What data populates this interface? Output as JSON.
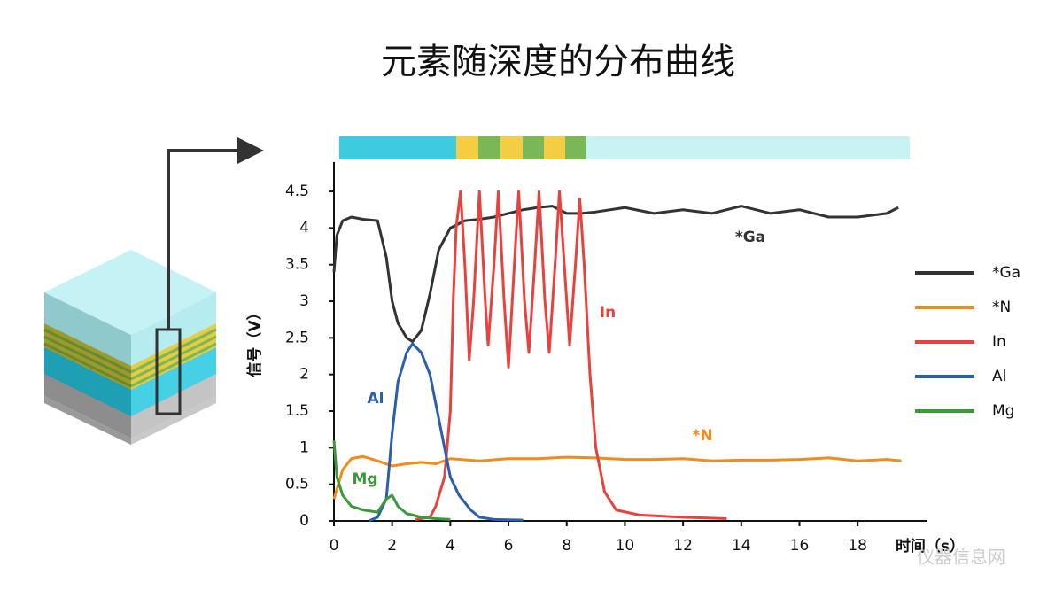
{
  "chart_data": {
    "type": "line",
    "title": "元素随深度的分布曲线",
    "x_label": "时间（s）",
    "y_label": "信号（V）",
    "xlim": [
      0,
      20.4
    ],
    "ylim": [
      0,
      4.9
    ],
    "xticks": [
      0,
      2,
      4,
      6,
      8,
      10,
      12,
      14,
      16,
      18
    ],
    "yticks": [
      0,
      0.5,
      1,
      1.5,
      2,
      2.5,
      3,
      3.5,
      4,
      4.5
    ],
    "legend": "right",
    "annotations": [
      "*Ga",
      "In",
      "Al",
      "*N",
      "Mg"
    ],
    "watermark": "仪器信息网",
    "series": [
      {
        "name": "*Ga",
        "color": "#333333",
        "x": [
          0,
          0.1,
          0.3,
          0.6,
          1,
          1.5,
          1.8,
          2,
          2.2,
          2.5,
          2.7,
          3,
          3.3,
          3.6,
          4,
          4.5,
          5,
          5.5,
          6,
          6.5,
          7,
          7.5,
          8,
          8.5,
          9,
          10,
          11,
          12,
          13,
          14,
          15,
          16,
          17,
          18,
          19,
          19.4
        ],
        "values": [
          3.4,
          3.9,
          4.1,
          4.15,
          4.12,
          4.1,
          3.6,
          3.0,
          2.7,
          2.5,
          2.45,
          2.6,
          3.1,
          3.7,
          4.0,
          4.1,
          4.12,
          4.15,
          4.2,
          4.25,
          4.28,
          4.3,
          4.2,
          4.2,
          4.22,
          4.28,
          4.2,
          4.25,
          4.2,
          4.3,
          4.2,
          4.25,
          4.15,
          4.15,
          4.2,
          4.28
        ]
      },
      {
        "name": "*N",
        "color": "#f08c1c",
        "x": [
          0,
          0.3,
          0.6,
          1,
          1.5,
          2,
          2.5,
          3,
          3.5,
          4,
          5,
          6,
          7,
          8,
          9,
          10,
          11,
          12,
          13,
          14,
          15,
          16,
          17,
          18,
          19,
          19.5
        ],
        "values": [
          0.3,
          0.7,
          0.85,
          0.88,
          0.82,
          0.75,
          0.78,
          0.8,
          0.78,
          0.85,
          0.82,
          0.85,
          0.85,
          0.87,
          0.86,
          0.84,
          0.84,
          0.85,
          0.82,
          0.83,
          0.83,
          0.84,
          0.86,
          0.82,
          0.84,
          0.82
        ]
      },
      {
        "name": "In",
        "color": "#e8413e",
        "x": [
          2.8,
          3.3,
          3.5,
          3.8,
          4.0,
          4.1,
          4.2,
          4.35,
          4.5,
          4.65,
          4.8,
          5.0,
          5.2,
          5.3,
          5.5,
          5.65,
          5.85,
          6.0,
          6.2,
          6.35,
          6.55,
          6.7,
          6.9,
          7.05,
          7.25,
          7.4,
          7.6,
          7.75,
          8.0,
          8.1,
          8.3,
          8.45,
          8.6,
          8.8,
          9.0,
          9.3,
          9.7,
          10.5,
          12,
          13.5
        ],
        "values": [
          0.02,
          0.05,
          0.2,
          0.6,
          1.5,
          3.0,
          4.0,
          4.5,
          3.5,
          2.2,
          3.0,
          4.5,
          3.0,
          2.4,
          3.5,
          4.5,
          3.0,
          2.1,
          3.5,
          4.5,
          3.0,
          2.3,
          3.5,
          4.5,
          3.0,
          2.3,
          3.5,
          4.5,
          3.0,
          2.4,
          3.5,
          4.4,
          3.5,
          2.0,
          1.0,
          0.4,
          0.15,
          0.08,
          0.05,
          0.03
        ]
      },
      {
        "name": "Al",
        "color": "#2a5fb0",
        "x": [
          1.2,
          1.5,
          1.8,
          2.0,
          2.2,
          2.5,
          2.7,
          3.0,
          3.3,
          3.5,
          3.8,
          4.0,
          4.3,
          4.7,
          5.0,
          5.5,
          6.5
        ],
        "values": [
          0.0,
          0.05,
          0.3,
          1.2,
          1.9,
          2.3,
          2.42,
          2.3,
          2.0,
          1.6,
          1.0,
          0.6,
          0.35,
          0.15,
          0.05,
          0.02,
          0.01
        ]
      },
      {
        "name": "Mg",
        "color": "#3a9a3a",
        "x": [
          0,
          0.1,
          0.3,
          0.6,
          1.0,
          1.5,
          1.8,
          2.0,
          2.2,
          2.5,
          3.0,
          3.5,
          4.0
        ],
        "values": [
          1.1,
          0.6,
          0.35,
          0.2,
          0.15,
          0.12,
          0.3,
          0.35,
          0.2,
          0.1,
          0.05,
          0.03,
          0.02
        ]
      }
    ]
  }
}
